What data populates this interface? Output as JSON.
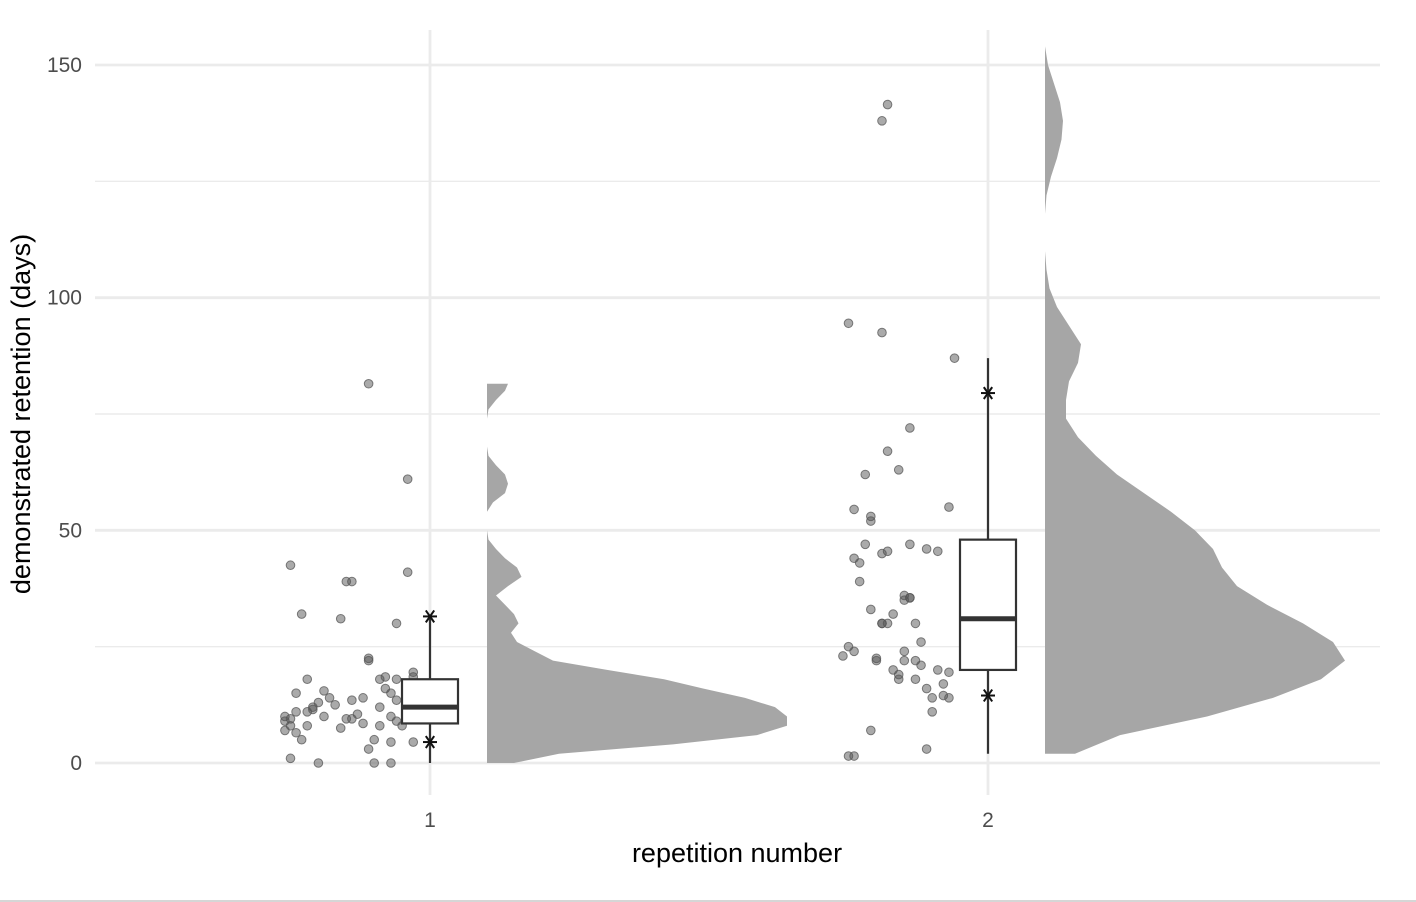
{
  "chart_data": {
    "type": "raincloud",
    "title": "",
    "xlabel": "repetition number",
    "ylabel": "demonstrated retention (days)",
    "categories": [
      "1",
      "2"
    ],
    "ylim": [
      -7,
      157
    ],
    "yticks": [
      0,
      50,
      100,
      150
    ],
    "grid": true,
    "legend": "none",
    "colors": {
      "grid": "#ebebeb",
      "density": "#a6a6a6",
      "points": "#555555",
      "box": "#333333"
    },
    "groups": [
      {
        "category": "1",
        "box": {
          "min": 0,
          "q1": 8.5,
          "median": 12,
          "q3": 18,
          "max": 31.5
        },
        "stars": [
          31.5,
          4.5
        ],
        "density_range": [
          0,
          81.5
        ],
        "density": [
          [
            0,
            0.09
          ],
          [
            2,
            0.24
          ],
          [
            4,
            0.62
          ],
          [
            6,
            0.9
          ],
          [
            8,
            1.0
          ],
          [
            10,
            1.0
          ],
          [
            12,
            0.96
          ],
          [
            14,
            0.86
          ],
          [
            16,
            0.72
          ],
          [
            18,
            0.59
          ],
          [
            20,
            0.4
          ],
          [
            22,
            0.22
          ],
          [
            24,
            0.16
          ],
          [
            26,
            0.1
          ],
          [
            28,
            0.08
          ],
          [
            30,
            0.105
          ],
          [
            32,
            0.09
          ],
          [
            34,
            0.06
          ],
          [
            36,
            0.03
          ],
          [
            38,
            0.07
          ],
          [
            40,
            0.115
          ],
          [
            42,
            0.1
          ],
          [
            44,
            0.06
          ],
          [
            46,
            0.03
          ],
          [
            48,
            0.005
          ],
          [
            50,
            0.0
          ],
          [
            52,
            0.0
          ],
          [
            54,
            0.0
          ],
          [
            56,
            0.02
          ],
          [
            58,
            0.06
          ],
          [
            60,
            0.07
          ],
          [
            62,
            0.06
          ],
          [
            64,
            0.03
          ],
          [
            66,
            0.005
          ],
          [
            68,
            0.0
          ],
          [
            70,
            0.0
          ],
          [
            72,
            0.0
          ],
          [
            74,
            0.0
          ],
          [
            76,
            0.005
          ],
          [
            78,
            0.03
          ],
          [
            80,
            0.06
          ],
          [
            81.5,
            0.07
          ]
        ],
        "points": [
          [
            -0.25,
            42.5
          ],
          [
            -0.25,
            1
          ],
          [
            -0.24,
            15
          ],
          [
            -0.23,
            32
          ],
          [
            -0.22,
            18
          ],
          [
            -0.26,
            10
          ],
          [
            -0.25,
            8
          ],
          [
            -0.24,
            6.5
          ],
          [
            -0.23,
            5
          ],
          [
            -0.22,
            11
          ],
          [
            -0.21,
            12
          ],
          [
            -0.2,
            13
          ],
          [
            -0.19,
            15.5
          ],
          [
            -0.19,
            10
          ],
          [
            -0.18,
            14
          ],
          [
            -0.17,
            12.5
          ],
          [
            -0.21,
            11.5
          ],
          [
            -0.22,
            8
          ],
          [
            -0.26,
            7
          ],
          [
            -0.26,
            9
          ],
          [
            -0.25,
            9.5
          ],
          [
            -0.24,
            11
          ],
          [
            -0.2,
            0
          ],
          [
            -0.16,
            31
          ],
          [
            -0.16,
            7.5
          ],
          [
            -0.15,
            9.5
          ],
          [
            -0.14,
            13.5
          ],
          [
            -0.13,
            10.5
          ],
          [
            -0.14,
            9.5
          ],
          [
            -0.12,
            14
          ],
          [
            -0.12,
            8.5
          ],
          [
            -0.11,
            22.5
          ],
          [
            -0.11,
            22
          ],
          [
            -0.11,
            3
          ],
          [
            -0.1,
            5
          ],
          [
            -0.1,
            0
          ],
          [
            -0.09,
            18
          ],
          [
            -0.09,
            12
          ],
          [
            -0.08,
            16
          ],
          [
            -0.08,
            18.5
          ],
          [
            -0.07,
            15
          ],
          [
            -0.07,
            10
          ],
          [
            -0.07,
            4.5
          ],
          [
            -0.07,
            0
          ],
          [
            -0.06,
            30
          ],
          [
            -0.06,
            18
          ],
          [
            -0.06,
            13.5
          ],
          [
            -0.06,
            9
          ],
          [
            -0.05,
            8
          ],
          [
            -0.04,
            41
          ],
          [
            -0.04,
            12
          ],
          [
            -0.04,
            9.5
          ],
          [
            -0.03,
            18.5
          ],
          [
            -0.03,
            19.5
          ],
          [
            -0.03,
            4.5
          ],
          [
            -0.15,
            39
          ],
          [
            -0.14,
            39
          ],
          [
            -0.11,
            81.5
          ],
          [
            -0.04,
            61
          ],
          [
            -0.09,
            8
          ]
        ]
      },
      {
        "category": "2",
        "box": {
          "min": 2,
          "q1": 20,
          "median": 31,
          "q3": 48,
          "max": 87
        },
        "stars": [
          79.5,
          14.5
        ],
        "density_range": [
          2,
          157
        ],
        "density": [
          [
            2,
            0.1
          ],
          [
            6,
            0.25
          ],
          [
            10,
            0.54
          ],
          [
            14,
            0.76
          ],
          [
            18,
            0.92
          ],
          [
            22,
            1.0
          ],
          [
            26,
            0.96
          ],
          [
            30,
            0.86
          ],
          [
            34,
            0.74
          ],
          [
            38,
            0.64
          ],
          [
            42,
            0.59
          ],
          [
            46,
            0.56
          ],
          [
            50,
            0.5
          ],
          [
            54,
            0.42
          ],
          [
            58,
            0.33
          ],
          [
            62,
            0.24
          ],
          [
            66,
            0.17
          ],
          [
            70,
            0.11
          ],
          [
            74,
            0.07
          ],
          [
            78,
            0.07
          ],
          [
            82,
            0.08
          ],
          [
            86,
            0.11
          ],
          [
            90,
            0.12
          ],
          [
            94,
            0.08
          ],
          [
            98,
            0.04
          ],
          [
            102,
            0.015
          ],
          [
            106,
            0.005
          ],
          [
            110,
            0.0
          ],
          [
            114,
            0.0
          ],
          [
            118,
            0.0
          ],
          [
            122,
            0.005
          ],
          [
            126,
            0.02
          ],
          [
            130,
            0.04
          ],
          [
            134,
            0.055
          ],
          [
            138,
            0.06
          ],
          [
            142,
            0.05
          ],
          [
            146,
            0.03
          ],
          [
            150,
            0.01
          ],
          [
            154,
            0.0
          ],
          [
            157,
            0.0
          ]
        ],
        "points": [
          [
            -0.25,
            94.5
          ],
          [
            -0.25,
            25
          ],
          [
            -0.26,
            23
          ],
          [
            -0.24,
            24
          ],
          [
            -0.24,
            44
          ],
          [
            -0.23,
            43
          ],
          [
            -0.24,
            54.5
          ],
          [
            -0.23,
            39
          ],
          [
            -0.22,
            47
          ],
          [
            -0.21,
            33
          ],
          [
            -0.2,
            22
          ],
          [
            -0.22,
            62
          ],
          [
            -0.21,
            53
          ],
          [
            -0.21,
            52
          ],
          [
            -0.2,
            22.5
          ],
          [
            -0.19,
            45
          ],
          [
            -0.19,
            30
          ],
          [
            -0.19,
            30
          ],
          [
            -0.18,
            30
          ],
          [
            -0.18,
            45.5
          ],
          [
            -0.18,
            67
          ],
          [
            -0.17,
            32
          ],
          [
            -0.17,
            20
          ],
          [
            -0.16,
            63
          ],
          [
            -0.16,
            19
          ],
          [
            -0.16,
            18
          ],
          [
            -0.15,
            36
          ],
          [
            -0.15,
            24
          ],
          [
            -0.14,
            47
          ],
          [
            -0.14,
            72
          ],
          [
            -0.14,
            35.5
          ],
          [
            -0.14,
            35.5
          ],
          [
            -0.13,
            22
          ],
          [
            -0.13,
            30
          ],
          [
            -0.13,
            18
          ],
          [
            -0.12,
            21
          ],
          [
            -0.12,
            26
          ],
          [
            -0.11,
            46
          ],
          [
            -0.11,
            3
          ],
          [
            -0.11,
            16
          ],
          [
            -0.1,
            14
          ],
          [
            -0.1,
            11
          ],
          [
            -0.09,
            45.5
          ],
          [
            -0.09,
            20
          ],
          [
            -0.08,
            17
          ],
          [
            -0.08,
            14.5
          ],
          [
            -0.07,
            14
          ],
          [
            -0.07,
            19.5
          ],
          [
            -0.07,
            55
          ],
          [
            -0.06,
            87
          ],
          [
            -0.21,
            7
          ],
          [
            -0.25,
            1.5
          ],
          [
            -0.24,
            1.5
          ],
          [
            -0.19,
            138
          ],
          [
            -0.18,
            141.5
          ],
          [
            -0.19,
            92.5
          ],
          [
            -0.15,
            35
          ],
          [
            -0.15,
            22
          ]
        ]
      }
    ]
  }
}
